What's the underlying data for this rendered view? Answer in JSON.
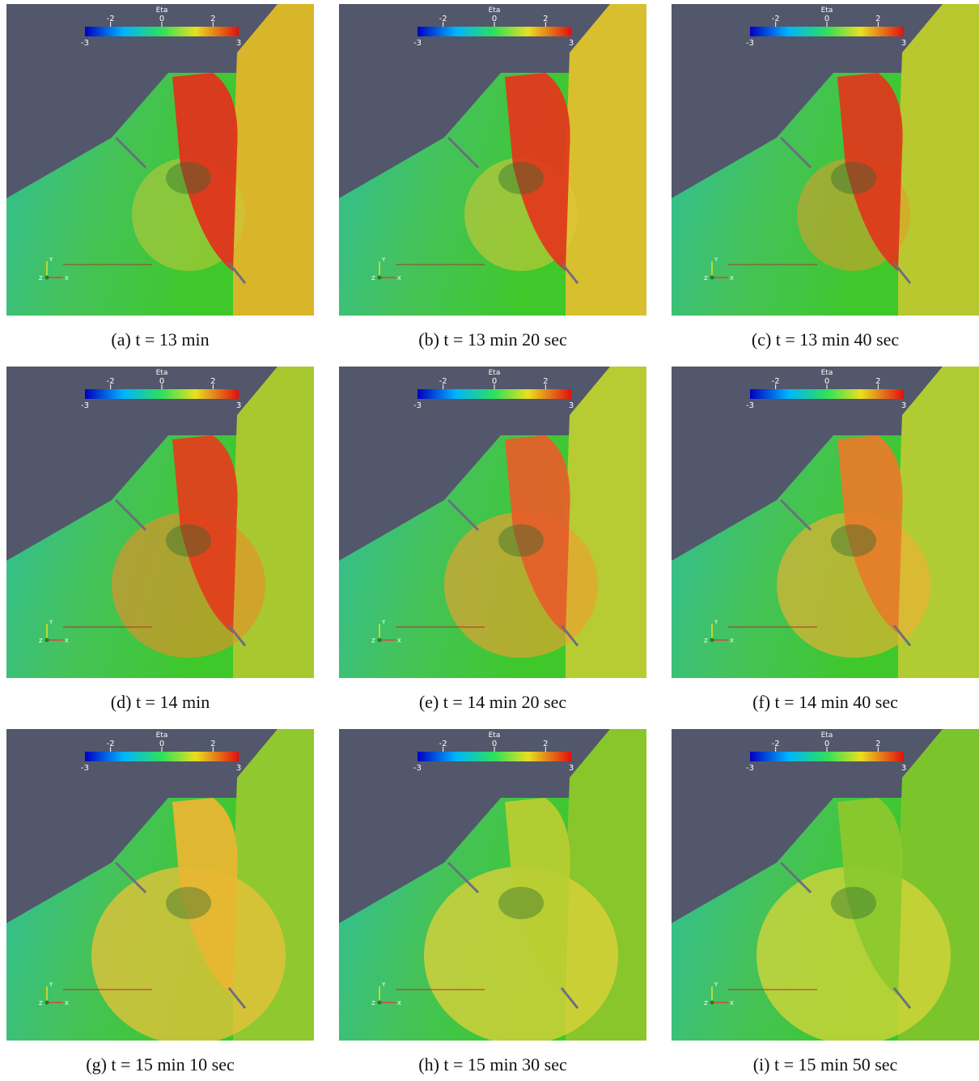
{
  "colorbar": {
    "title": "Eta",
    "range": [
      -3,
      3
    ],
    "ticks": [
      -2,
      0,
      2
    ]
  },
  "triad": {
    "y": "Y",
    "z": "Z",
    "x": "X"
  },
  "panels": [
    {
      "caption": "(a) t = 13 min"
    },
    {
      "caption": "(b) t = 13 min 20 sec"
    },
    {
      "caption": "(c) t = 13 min 40 sec"
    },
    {
      "caption": "(d) t = 14 min"
    },
    {
      "caption": "(e) t = 14 min 20 sec"
    },
    {
      "caption": "(f) t = 14 min 40 sec"
    },
    {
      "caption": "(g) t = 15 min 10 sec"
    },
    {
      "caption": "(h) t = 15 min 30 sec"
    },
    {
      "caption": "(i) t = 15 min 50 sec"
    }
  ]
}
